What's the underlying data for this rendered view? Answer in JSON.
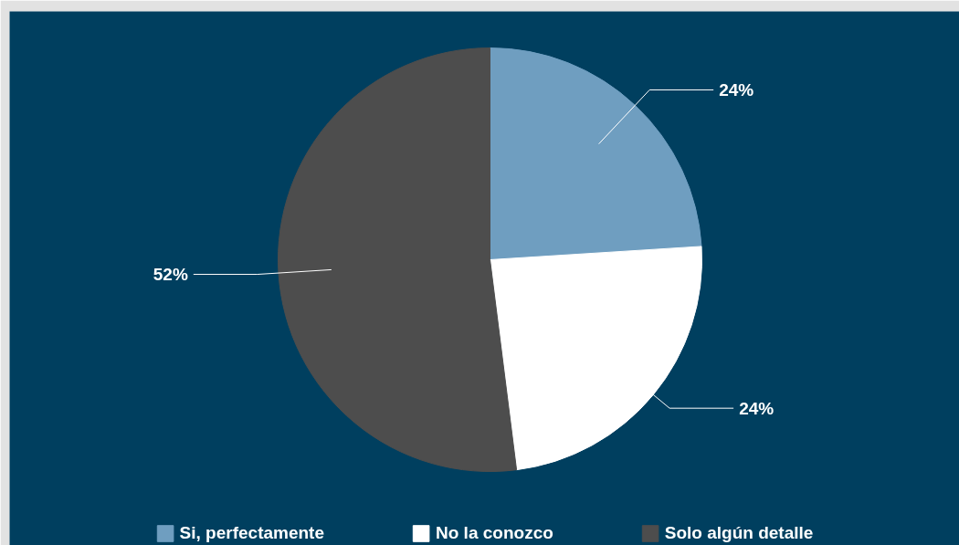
{
  "chart_data": {
    "type": "pie",
    "categories": [
      "Si, perfectamente",
      "No la conozco",
      "Solo algún detalle"
    ],
    "values": [
      24,
      24,
      52
    ],
    "colors": [
      "#6f9ec0",
      "#ffffff",
      "#4d4d4d"
    ],
    "value_labels": [
      "24%",
      "24%",
      "52%"
    ],
    "legend": "bottom"
  }
}
